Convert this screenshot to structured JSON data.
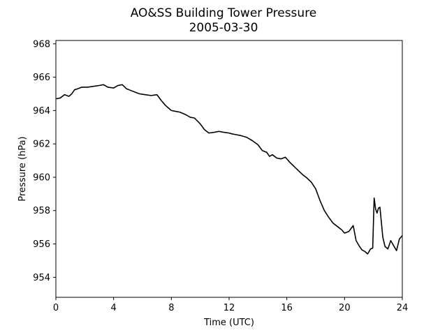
{
  "chart_data": {
    "type": "line",
    "title": "AO&SS Building Tower Pressure",
    "subtitle": "2005-03-30",
    "xlabel": "Time (UTC)",
    "ylabel": "Pressure (hPa)",
    "xlim": [
      0,
      24
    ],
    "ylim": [
      952.8,
      968.2
    ],
    "xticks": [
      0,
      4,
      8,
      12,
      16,
      20,
      24
    ],
    "yticks": [
      954,
      956,
      958,
      960,
      962,
      964,
      966,
      968
    ],
    "grid": false,
    "line_color": "#000000",
    "series": [
      {
        "x": [
          0,
          0.3,
          0.6,
          0.9,
          1.1,
          1.3,
          1.5,
          1.8,
          2.2,
          2.6,
          3.0,
          3.3,
          3.6,
          4.0,
          4.3,
          4.6,
          4.9,
          5.2,
          5.5,
          5.8,
          6.2,
          6.6,
          7.0,
          7.3,
          7.6,
          8.0,
          8.3,
          8.6,
          9.0,
          9.3,
          9.6,
          10.0,
          10.3,
          10.6,
          11.0,
          11.3,
          11.6,
          12.0,
          12.2,
          12.5,
          12.8,
          13.2,
          13.6,
          14.0,
          14.3,
          14.6,
          14.8,
          15.0,
          15.3,
          15.6,
          15.9,
          16.2,
          16.5,
          16.8,
          17.1,
          17.4,
          17.7,
          18.0,
          18.3,
          18.6,
          18.9,
          19.2,
          19.5,
          19.8,
          20.0,
          20.3,
          20.6,
          20.8,
          21.0,
          21.2,
          21.4,
          21.6,
          21.8,
          21.95,
          22.05,
          22.15,
          22.25,
          22.35,
          22.45,
          22.55,
          22.65,
          22.8,
          23.0,
          23.2,
          23.4,
          23.6,
          23.8,
          24.0
        ],
        "y": [
          964.7,
          964.75,
          964.95,
          964.85,
          965.0,
          965.25,
          965.3,
          965.4,
          965.4,
          965.45,
          965.5,
          965.55,
          965.4,
          965.35,
          965.5,
          965.55,
          965.3,
          965.2,
          965.1,
          965.0,
          964.95,
          964.9,
          964.95,
          964.6,
          964.3,
          964.0,
          963.95,
          963.9,
          963.75,
          963.6,
          963.55,
          963.2,
          962.85,
          962.65,
          962.7,
          962.75,
          962.7,
          962.65,
          962.6,
          962.55,
          962.5,
          962.4,
          962.2,
          961.95,
          961.6,
          961.5,
          961.25,
          961.35,
          961.15,
          961.1,
          961.2,
          960.9,
          960.65,
          960.4,
          960.15,
          959.95,
          959.7,
          959.3,
          958.6,
          958.0,
          957.6,
          957.25,
          957.05,
          956.85,
          956.65,
          956.75,
          957.1,
          956.2,
          955.9,
          955.65,
          955.55,
          955.4,
          955.7,
          955.75,
          958.75,
          958.1,
          957.85,
          958.15,
          958.2,
          957.3,
          956.4,
          955.85,
          955.7,
          956.2,
          955.9,
          955.6,
          956.3,
          956.5
        ]
      }
    ]
  }
}
